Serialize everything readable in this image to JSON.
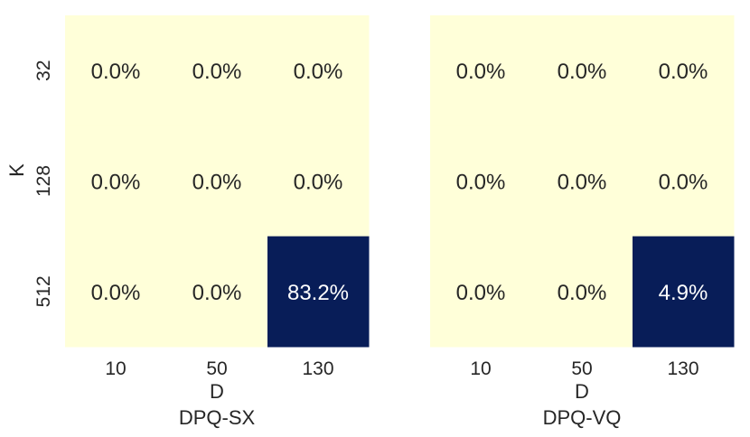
{
  "chart_data": [
    {
      "type": "heatmap",
      "title": "DPQ-SX",
      "xlabel": "D",
      "ylabel": "K",
      "x": [
        "10",
        "50",
        "130"
      ],
      "y": [
        "32",
        "128",
        "512"
      ],
      "values": [
        [
          0.0,
          0.0,
          0.0
        ],
        [
          0.0,
          0.0,
          0.0
        ],
        [
          0.0,
          0.0,
          83.2
        ]
      ],
      "labels": [
        [
          "0.0%",
          "0.0%",
          "0.0%"
        ],
        [
          "0.0%",
          "0.0%",
          "0.0%"
        ],
        [
          "0.0%",
          "0.0%",
          "83.2%"
        ]
      ]
    },
    {
      "type": "heatmap",
      "title": "DPQ-VQ",
      "xlabel": "D",
      "ylabel": "",
      "x": [
        "10",
        "50",
        "130"
      ],
      "y": [
        "32",
        "128",
        "512"
      ],
      "values": [
        [
          0.0,
          0.0,
          0.0
        ],
        [
          0.0,
          0.0,
          0.0
        ],
        [
          0.0,
          0.0,
          4.9
        ]
      ],
      "labels": [
        [
          "0.0%",
          "0.0%",
          "0.0%"
        ],
        [
          "0.0%",
          "0.0%",
          "0.0%"
        ],
        [
          "0.0%",
          "0.0%",
          "4.9%"
        ]
      ]
    }
  ],
  "colors": {
    "low": "#ffffd9",
    "high": "#081d58",
    "text_dark": "#262626",
    "text_light": "#ffffff"
  }
}
